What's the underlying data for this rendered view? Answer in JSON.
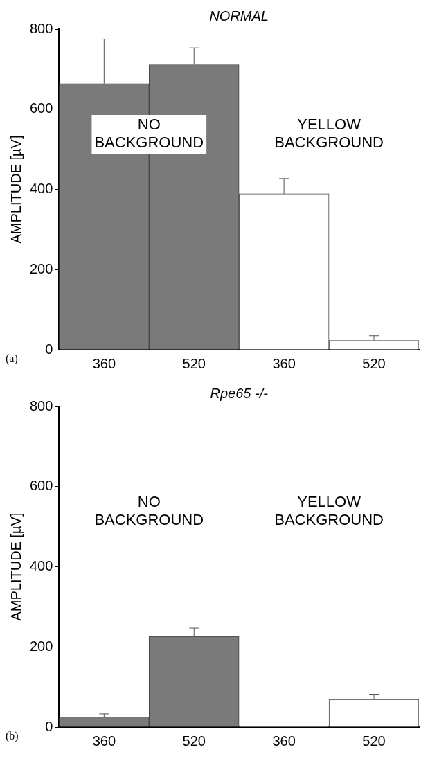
{
  "chart_data": [
    {
      "type": "bar",
      "title": "NORMAL",
      "ylabel": "AMPLITUDE [µV]",
      "categories": [
        "360",
        "520",
        "360",
        "520"
      ],
      "values": [
        664,
        711,
        389,
        23
      ],
      "colors": [
        "#7a7a7a",
        "#7a7a7a",
        "#ffffff",
        "#ffffff"
      ],
      "errors": [
        [
          664,
          775
        ],
        [
          711,
          753
        ],
        [
          389,
          427
        ],
        [
          23,
          35
        ]
      ],
      "ylim": [
        0,
        800
      ],
      "yticks": [
        0,
        200,
        400,
        600,
        800
      ],
      "grid": false,
      "legend": false,
      "annotations": [
        "(a)",
        "NO BACKGROUND",
        "YELLOW BACKGROUND"
      ]
    },
    {
      "type": "bar",
      "title": "Rpe65 -/-",
      "ylabel": "AMPLITUDE [µV]",
      "categories": [
        "360",
        "520",
        "360",
        "520"
      ],
      "values": [
        25,
        226,
        2,
        69
      ],
      "colors": [
        "#7a7a7a",
        "#7a7a7a",
        "#ffffff",
        "#ffffff"
      ],
      "errors": [
        [
          25,
          33
        ],
        [
          226,
          247
        ],
        null,
        [
          69,
          82
        ]
      ],
      "ylim": [
        0,
        800
      ],
      "yticks": [
        0,
        200,
        400,
        600,
        800
      ],
      "grid": false,
      "legend": false,
      "annotations": [
        "(b)",
        "NO BACKGROUND",
        "YELLOW BACKGROUND"
      ]
    }
  ]
}
